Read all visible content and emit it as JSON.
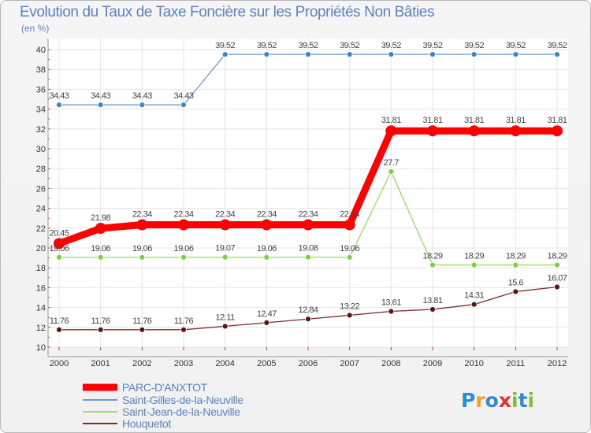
{
  "chart_data": {
    "type": "line",
    "title": "Evolution du Taux de Taxe Foncière sur les Propriétés Non Bâties",
    "ylabel": "(en %)",
    "xlabel": "",
    "x": [
      "2000",
      "2001",
      "2002",
      "2003",
      "2004",
      "2005",
      "2006",
      "2007",
      "2008",
      "2009",
      "2010",
      "2011",
      "2012"
    ],
    "ylim": [
      10,
      40
    ],
    "yticks": [
      "10",
      "12",
      "14",
      "16",
      "18",
      "20",
      "22",
      "24",
      "26",
      "28",
      "30",
      "32",
      "34",
      "36",
      "38",
      "40"
    ],
    "grid": true,
    "legend_position": "bottom-left",
    "series": [
      {
        "name": "PARC-D'ANXTOT",
        "color": "#ff0000",
        "values": [
          20.45,
          21.98,
          22.34,
          22.34,
          22.34,
          22.34,
          22.34,
          22.34,
          31.81,
          31.81,
          31.81,
          31.81,
          31.81
        ],
        "labels": [
          "20.45",
          "21.98",
          "22.34",
          "22.34",
          "22.34",
          "22.34",
          "22.34",
          "22.34",
          "31.81",
          "31.81",
          "31.81",
          "31.81",
          "31.81"
        ]
      },
      {
        "name": "Saint-Gilles-de-la-Neuville",
        "color": "#6b9bd1",
        "values": [
          34.43,
          34.43,
          34.43,
          34.43,
          39.52,
          39.52,
          39.52,
          39.52,
          39.52,
          39.52,
          39.52,
          39.52,
          39.52
        ],
        "labels": [
          "34.43",
          "34.43",
          "34.43",
          "34.43",
          "39.52",
          "39.52",
          "39.52",
          "39.52",
          "39.52",
          "39.52",
          "39.52",
          "39.52",
          "39.52"
        ]
      },
      {
        "name": "Saint-Jean-de-la-Neuville",
        "color": "#99dd66",
        "values": [
          19.06,
          19.06,
          19.06,
          19.06,
          19.07,
          19.06,
          19.08,
          19.06,
          27.7,
          18.29,
          18.29,
          18.29,
          18.29
        ],
        "labels": [
          "19.06",
          "19.06",
          "19.06",
          "19.06",
          "19.07",
          "19.06",
          "19.08",
          "19.06",
          "27.7",
          "18.29",
          "18.29",
          "18.29",
          "18.29"
        ]
      },
      {
        "name": "Houquetot",
        "color": "#7b2b2b",
        "values": [
          11.76,
          11.76,
          11.76,
          11.76,
          12.11,
          12.47,
          12.84,
          13.22,
          13.61,
          13.81,
          14.31,
          15.6,
          16.07
        ],
        "labels": [
          "11.76",
          "11.76",
          "11.76",
          "11.76",
          "12.11",
          "12.47",
          "12.84",
          "13.22",
          "13.61",
          "13.81",
          "14.31",
          "15.6",
          "16.07"
        ]
      }
    ]
  },
  "logo": {
    "text": "Proxiti",
    "colors": [
      "#2e8bd6",
      "#f0a020",
      "#2e8bd6",
      "#e03030",
      "#7cbf3a",
      "#2e8bd6",
      "#7cbf3a"
    ]
  }
}
